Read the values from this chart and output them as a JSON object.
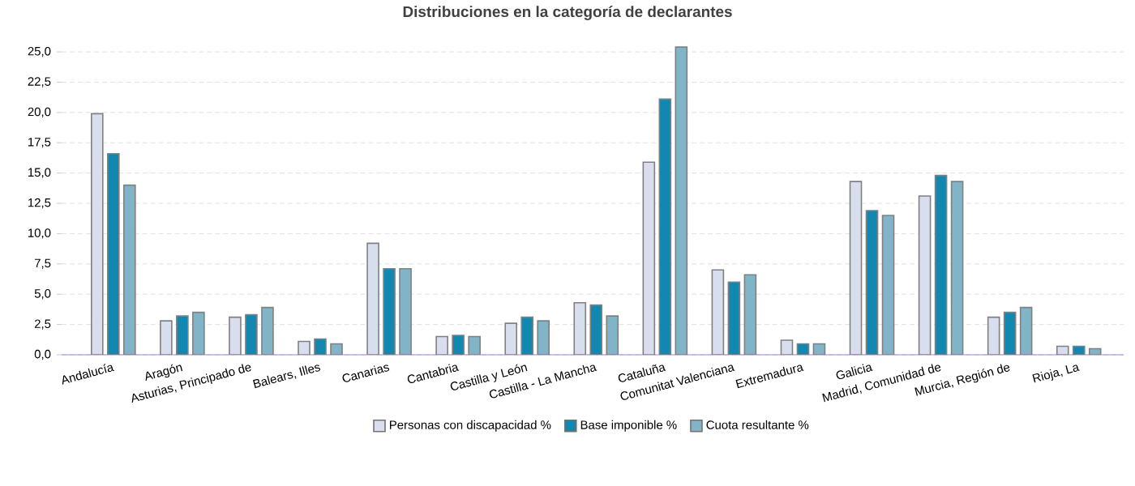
{
  "chart_data": {
    "type": "bar",
    "title": "Distribuciones en la categoría de declarantes",
    "categories": [
      "Andalucía",
      "Aragón",
      "Asturias, Principado de",
      "Balears, Illes",
      "Canarias",
      "Cantabria",
      "Castilla y León",
      "Castilla - La Mancha",
      "Cataluña",
      "Comunitat Valenciana",
      "Extremadura",
      "Galicia",
      "Madrid, Comunidad de",
      "Murcia, Región de",
      "Rioja, La"
    ],
    "series": [
      {
        "name": "Personas con discapacidad %",
        "color": "#d9deee",
        "values": [
          19.9,
          2.8,
          3.1,
          1.1,
          9.2,
          1.5,
          2.6,
          4.3,
          15.9,
          7.0,
          1.2,
          14.3,
          13.1,
          3.1,
          0.7
        ]
      },
      {
        "name": "Base imponible %",
        "color": "#1287b0",
        "values": [
          16.6,
          3.2,
          3.3,
          1.3,
          7.1,
          1.6,
          3.1,
          4.1,
          21.1,
          6.0,
          0.9,
          11.9,
          14.8,
          3.5,
          0.7
        ]
      },
      {
        "name": "Cuota resultante %",
        "color": "#82b4c8",
        "values": [
          14.0,
          3.5,
          3.9,
          0.9,
          7.1,
          1.5,
          2.8,
          3.2,
          25.4,
          6.6,
          0.9,
          11.5,
          14.3,
          3.9,
          0.5
        ]
      }
    ],
    "ylim": [
      0,
      25.5
    ],
    "yticks": [
      {
        "value": 0,
        "label": "0,0"
      },
      {
        "value": 2.5,
        "label": "2,5"
      },
      {
        "value": 5,
        "label": "5,0"
      },
      {
        "value": 7.5,
        "label": "7,5"
      },
      {
        "value": 10,
        "label": "10,0"
      },
      {
        "value": 12.5,
        "label": "12,5"
      },
      {
        "value": 15,
        "label": "15,0"
      },
      {
        "value": 17.5,
        "label": "17,5"
      },
      {
        "value": 20,
        "label": "20,0"
      },
      {
        "value": 22.5,
        "label": "22,5"
      },
      {
        "value": 25,
        "label": "25,0"
      }
    ],
    "grid": "y",
    "legend": "bottom"
  }
}
